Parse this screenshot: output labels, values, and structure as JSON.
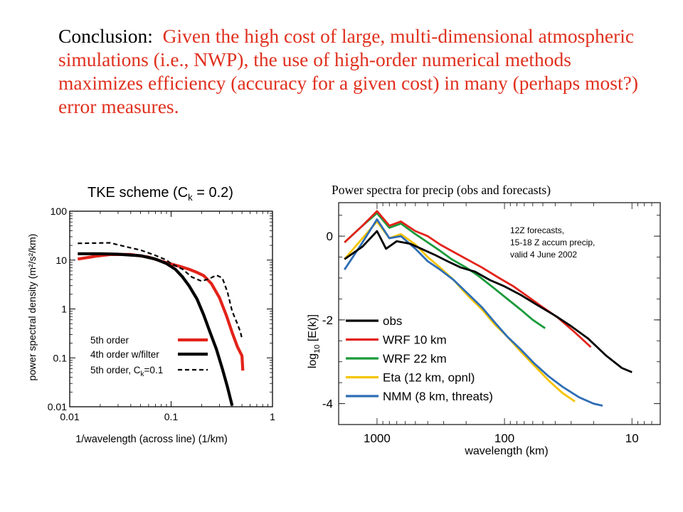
{
  "conclusion": {
    "lead": "Conclusion:",
    "text": "Given the high cost of large, multi-dimensional atmospheric simulations (i.e., NWP), the use of high-order numerical methods  maximizes efficiency (accuracy for a given cost) in many (perhaps most?) error measures."
  },
  "colors": {
    "red": "#e2231a",
    "black": "#000000",
    "green": "#1a9a3a",
    "yellow": "#f5c400",
    "blue": "#2e6db5",
    "conclusion_red": "#e0301e"
  },
  "chart_data": [
    {
      "type": "line",
      "title": "TKE scheme  (C",
      "title_sub": "k",
      "title_tail": " = 0.2)",
      "xlabel": "1/wavelength (across line) (1/km)",
      "ylabel": "power spectral density (m²/s²/km)",
      "x_scale": "log",
      "y_scale": "log",
      "xlim": [
        0.01,
        1
      ],
      "ylim": [
        0.01,
        100
      ],
      "x_ticks": [
        {
          "value": 0.01,
          "label": "0.01"
        },
        {
          "value": 0.1,
          "label": "0.1"
        },
        {
          "value": 1,
          "label": "1"
        }
      ],
      "y_ticks": [
        {
          "value": 0.01,
          "label": "0.01"
        },
        {
          "value": 0.1,
          "label": "0.1"
        },
        {
          "value": 1,
          "label": "1"
        },
        {
          "value": 10,
          "label": "10"
        },
        {
          "value": 100,
          "label": "100"
        }
      ],
      "legend_position": "bottom-right",
      "series": [
        {
          "name": "5th order",
          "color": "#e2231a",
          "dash": "solid",
          "points": [
            [
              0.012,
              10.5
            ],
            [
              0.018,
              12
            ],
            [
              0.025,
              13
            ],
            [
              0.04,
              13
            ],
            [
              0.06,
              11.5
            ],
            [
              0.08,
              9.5
            ],
            [
              0.1,
              8.3
            ],
            [
              0.12,
              7.5
            ],
            [
              0.15,
              6.5
            ],
            [
              0.18,
              5.6
            ],
            [
              0.21,
              4.8
            ],
            [
              0.25,
              3.3
            ],
            [
              0.3,
              1.7
            ],
            [
              0.35,
              0.75
            ],
            [
              0.4,
              0.33
            ],
            [
              0.45,
              0.17
            ],
            [
              0.5,
              0.11
            ],
            [
              0.51,
              0.055
            ]
          ]
        },
        {
          "name": "4th order  w/filter",
          "color": "#000000",
          "dash": "solid",
          "points": [
            [
              0.012,
              13.5
            ],
            [
              0.02,
              13.5
            ],
            [
              0.03,
              13.2
            ],
            [
              0.05,
              12.3
            ],
            [
              0.07,
              10.5
            ],
            [
              0.09,
              8.5
            ],
            [
              0.11,
              6.5
            ],
            [
              0.13,
              4.5
            ],
            [
              0.15,
              3
            ],
            [
              0.18,
              1.6
            ],
            [
              0.21,
              0.75
            ],
            [
              0.24,
              0.35
            ],
            [
              0.28,
              0.15
            ],
            [
              0.32,
              0.06
            ],
            [
              0.36,
              0.025
            ],
            [
              0.4,
              0.0105
            ]
          ]
        },
        {
          "name": "5th order, C",
          "name_sub": "k",
          "name_tail": "=0.1",
          "color": "#000000",
          "dash": "dashed",
          "points": [
            [
              0.012,
              22
            ],
            [
              0.025,
              22.5
            ],
            [
              0.035,
              19
            ],
            [
              0.05,
              16
            ],
            [
              0.07,
              12.5
            ],
            [
              0.09,
              10
            ],
            [
              0.1,
              8.5
            ],
            [
              0.13,
              6.5
            ],
            [
              0.16,
              4.5
            ],
            [
              0.2,
              3.7
            ],
            [
              0.24,
              4.2
            ],
            [
              0.28,
              4.9
            ],
            [
              0.32,
              4.3
            ],
            [
              0.36,
              2.2
            ],
            [
              0.4,
              0.9
            ],
            [
              0.45,
              0.5
            ],
            [
              0.48,
              0.35
            ],
            [
              0.5,
              0.25
            ]
          ]
        }
      ]
    },
    {
      "type": "line",
      "title": "Power spectra for precip (obs and forecasts)",
      "xlabel": "wavelength (km)",
      "ylabel": "log",
      "ylabel_sub": "10",
      "ylabel_tail": " [E(k)]",
      "x_scale": "log",
      "x_reversed": true,
      "xlim": [
        2000,
        6
      ],
      "ylim": [
        -4.5,
        0.8
      ],
      "x_ticks": [
        {
          "value": 1000,
          "label": "1000"
        },
        {
          "value": 100,
          "label": "100"
        },
        {
          "value": 10,
          "label": "10"
        }
      ],
      "y_ticks": [
        {
          "value": 0,
          "label": "0"
        },
        {
          "value": -2,
          "label": "-2"
        },
        {
          "value": -4,
          "label": "-4"
        }
      ],
      "annotation": [
        "12Z forecasts,",
        "15-18 Z accum precip,",
        "valid 4 June 2002"
      ],
      "legend_position": "bottom-left",
      "series": [
        {
          "name": "obs",
          "color": "#000000",
          "points": [
            [
              1800,
              -0.55
            ],
            [
              1300,
              -0.25
            ],
            [
              1000,
              0.12
            ],
            [
              850,
              -0.3
            ],
            [
              700,
              -0.12
            ],
            [
              550,
              -0.18
            ],
            [
              450,
              -0.3
            ],
            [
              350,
              -0.45
            ],
            [
              280,
              -0.6
            ],
            [
              220,
              -0.75
            ],
            [
              170,
              -0.85
            ],
            [
              130,
              -1.05
            ],
            [
              100,
              -1.2
            ],
            [
              75,
              -1.4
            ],
            [
              55,
              -1.65
            ],
            [
              40,
              -1.9
            ],
            [
              30,
              -2.15
            ],
            [
              22,
              -2.45
            ],
            [
              16,
              -2.85
            ],
            [
              12,
              -3.15
            ],
            [
              10,
              -3.25
            ]
          ]
        },
        {
          "name": "WRF 10 km",
          "color": "#e2231a",
          "points": [
            [
              1800,
              -0.15
            ],
            [
              1300,
              0.25
            ],
            [
              1000,
              0.6
            ],
            [
              800,
              0.25
            ],
            [
              650,
              0.35
            ],
            [
              500,
              0.12
            ],
            [
              400,
              0.0
            ],
            [
              320,
              -0.2
            ],
            [
              250,
              -0.38
            ],
            [
              190,
              -0.58
            ],
            [
              150,
              -0.75
            ],
            [
              110,
              -1.0
            ],
            [
              85,
              -1.2
            ],
            [
              65,
              -1.45
            ],
            [
              50,
              -1.7
            ],
            [
              38,
              -1.95
            ],
            [
              28,
              -2.3
            ],
            [
              21,
              -2.65
            ]
          ]
        },
        {
          "name": "WRF 22 km",
          "color": "#1a9a3a",
          "points": [
            [
              1800,
              -0.15
            ],
            [
              1300,
              0.25
            ],
            [
              1000,
              0.55
            ],
            [
              800,
              0.2
            ],
            [
              650,
              0.3
            ],
            [
              500,
              0.05
            ],
            [
              400,
              -0.15
            ],
            [
              320,
              -0.35
            ],
            [
              260,
              -0.55
            ],
            [
              200,
              -0.75
            ],
            [
              160,
              -0.95
            ],
            [
              120,
              -1.25
            ],
            [
              95,
              -1.5
            ],
            [
              75,
              -1.75
            ],
            [
              60,
              -2.0
            ],
            [
              48,
              -2.2
            ]
          ]
        },
        {
          "name": "Eta (12 km, opnl)",
          "color": "#f5c400",
          "points": [
            [
              1800,
              -0.55
            ],
            [
              1300,
              -0.05
            ],
            [
              1000,
              0.35
            ],
            [
              800,
              -0.05
            ],
            [
              650,
              0.05
            ],
            [
              500,
              -0.2
            ],
            [
              400,
              -0.5
            ],
            [
              320,
              -0.75
            ],
            [
              250,
              -1.05
            ],
            [
              190,
              -1.45
            ],
            [
              150,
              -1.75
            ],
            [
              120,
              -2.1
            ],
            [
              95,
              -2.4
            ],
            [
              75,
              -2.75
            ],
            [
              58,
              -3.1
            ],
            [
              45,
              -3.45
            ],
            [
              35,
              -3.75
            ],
            [
              28,
              -3.95
            ]
          ]
        },
        {
          "name": "NMM (8 km, threats)",
          "color": "#2e6db5",
          "points": [
            [
              1800,
              -0.8
            ],
            [
              1300,
              -0.15
            ],
            [
              1000,
              0.4
            ],
            [
              800,
              -0.05
            ],
            [
              650,
              0.0
            ],
            [
              500,
              -0.3
            ],
            [
              400,
              -0.6
            ],
            [
              320,
              -0.8
            ],
            [
              250,
              -1.05
            ],
            [
              190,
              -1.4
            ],
            [
              150,
              -1.7
            ],
            [
              120,
              -2.05
            ],
            [
              95,
              -2.4
            ],
            [
              75,
              -2.7
            ],
            [
              58,
              -3.05
            ],
            [
              45,
              -3.35
            ],
            [
              35,
              -3.6
            ],
            [
              26,
              -3.85
            ],
            [
              20,
              -4.0
            ],
            [
              17,
              -4.05
            ]
          ]
        }
      ]
    }
  ]
}
